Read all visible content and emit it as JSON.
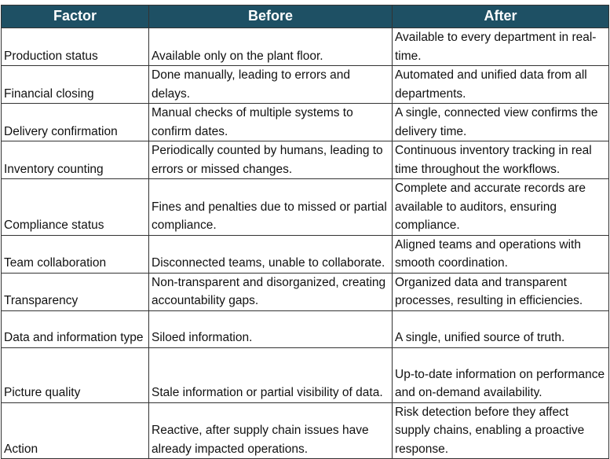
{
  "header": {
    "factor": "Factor",
    "before": "Before",
    "after": "After"
  },
  "rows": [
    {
      "factor": "Production status",
      "before": "Available only on the plant floor.",
      "after": "Available to every department in real-time."
    },
    {
      "factor": "Financial closing",
      "before": "Done manually, leading to errors and delays.",
      "after": "Automated and unified data from all departments."
    },
    {
      "factor": "Delivery confirmation",
      "before": "Manual checks of multiple systems to confirm dates.",
      "after": "A single, connected view confirms the delivery time."
    },
    {
      "factor": "Inventory counting",
      "before": "Periodically counted by humans, leading to errors or missed changes.",
      "after": "Continuous inventory tracking in real time throughout the workflows."
    },
    {
      "factor": "Compliance status",
      "before": "Fines and penalties due to missed or partial compliance.",
      "after": "Complete and accurate records are available to auditors, ensuring compliance."
    },
    {
      "factor": "Team collaboration",
      "before": "Disconnected teams, unable to collaborate.",
      "after": "Aligned teams and operations with smooth coordination."
    },
    {
      "factor": "Transparency",
      "before": "Non-transparent and disorganized, creating accountability gaps.",
      "after": "Organized data and transparent processes, resulting in efficiencies."
    },
    {
      "factor": "Data and information type",
      "before": "Siloed information.",
      "after": "A single, unified source of truth."
    },
    {
      "factor": "Picture quality",
      "before": "Stale information or partial visibility of data.",
      "after": "Up-to-date information on performance and on-demand availability."
    },
    {
      "factor": "Action",
      "before": "Reactive, after supply chain issues have already impacted operations.",
      "after": "Risk detection before they affect supply chains, enabling a proactive response."
    }
  ],
  "colors": {
    "header_bg": "#1e5064",
    "header_text": "#ffffff",
    "border": "#333333"
  }
}
